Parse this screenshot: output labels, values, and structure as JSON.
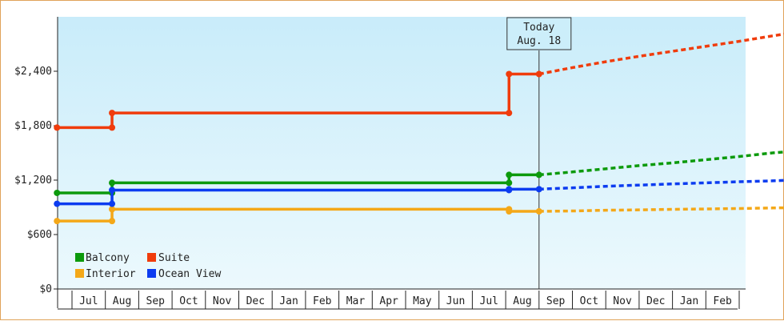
{
  "chart_data": {
    "type": "line",
    "ylim": [
      0,
      3000
    ],
    "y_ticks": [
      {
        "value": 0,
        "label": "$0"
      },
      {
        "value": 600,
        "label": "$600"
      },
      {
        "value": 1200,
        "label": "$1,200"
      },
      {
        "value": 1800,
        "label": "$1,800"
      },
      {
        "value": 2400,
        "label": "$2,400"
      }
    ],
    "month_labels": [
      "Jul",
      "Aug",
      "Sep",
      "Oct",
      "Nov",
      "Dec",
      "Jan",
      "Feb",
      "Mar",
      "Apr",
      "May",
      "Jun",
      "Jul",
      "Aug",
      "Sep",
      "Oct",
      "Nov",
      "Dec",
      "Jan",
      "Feb"
    ],
    "today_marker": {
      "line1": "Today",
      "line2": "Aug. 18",
      "x": 14.0
    },
    "background_gradient": {
      "top": "#c9ecfa",
      "bottom": "#ecf9fd"
    },
    "grid": false,
    "legend_position": "bottom-left",
    "series": [
      {
        "name": "Balcony",
        "color": "#0c9a0c",
        "history": [
          [
            -0.45,
            1059
          ],
          [
            1.2,
            1059
          ],
          [
            1.2,
            1170
          ],
          [
            13.1,
            1170
          ],
          [
            13.1,
            1258
          ],
          [
            14.0,
            1258
          ]
        ],
        "forecast": [
          [
            14.0,
            1258
          ],
          [
            15,
            1290
          ],
          [
            16,
            1325
          ],
          [
            17,
            1360
          ],
          [
            18,
            1390
          ],
          [
            19,
            1425
          ],
          [
            20,
            1460
          ],
          [
            21,
            1500
          ],
          [
            22,
            1530
          ]
        ]
      },
      {
        "name": "Suite",
        "color": "#f03c0c",
        "history": [
          [
            -0.45,
            1779
          ],
          [
            1.2,
            1779
          ],
          [
            1.2,
            1940
          ],
          [
            13.1,
            1940
          ],
          [
            13.1,
            2369
          ],
          [
            14.0,
            2369
          ]
        ],
        "forecast": [
          [
            14.0,
            2369
          ],
          [
            15,
            2440
          ],
          [
            16,
            2505
          ],
          [
            17,
            2565
          ],
          [
            18,
            2620
          ],
          [
            19,
            2675
          ],
          [
            20,
            2730
          ],
          [
            21,
            2790
          ],
          [
            22,
            2845
          ]
        ]
      },
      {
        "name": "Interior",
        "color": "#f4a818",
        "history": [
          [
            -0.45,
            749
          ],
          [
            1.2,
            749
          ],
          [
            1.2,
            879
          ],
          [
            13.1,
            879
          ],
          [
            13.1,
            856
          ],
          [
            14.0,
            856
          ]
        ],
        "forecast": [
          [
            14.0,
            856
          ],
          [
            15,
            860
          ],
          [
            16,
            868
          ],
          [
            17,
            872
          ],
          [
            18,
            878
          ],
          [
            19,
            882
          ],
          [
            20,
            887
          ],
          [
            21,
            893
          ],
          [
            22,
            898
          ]
        ]
      },
      {
        "name": "Ocean View",
        "color": "#0c3cf0",
        "history": [
          [
            -0.45,
            939
          ],
          [
            1.2,
            939
          ],
          [
            1.2,
            1090
          ],
          [
            13.1,
            1090
          ],
          [
            13.1,
            1100
          ],
          [
            14.0,
            1100
          ]
        ],
        "forecast": [
          [
            14.0,
            1100
          ],
          [
            15,
            1115
          ],
          [
            16,
            1132
          ],
          [
            17,
            1145
          ],
          [
            18,
            1158
          ],
          [
            19,
            1170
          ],
          [
            20,
            1182
          ],
          [
            21,
            1192
          ],
          [
            22,
            1205
          ]
        ]
      }
    ]
  }
}
